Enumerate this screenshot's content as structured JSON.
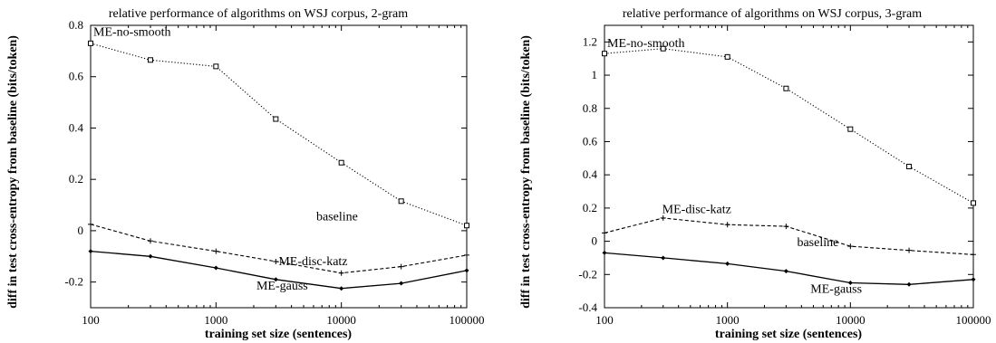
{
  "chart_data": [
    {
      "type": "line",
      "title": "relative performance of algorithms on WSJ corpus, 2-gram",
      "xlabel": "training set size (sentences)",
      "ylabel": "diff in test cross-entropy from baseline (bits/token)",
      "xscale": "log",
      "xlim": [
        100,
        100000
      ],
      "ylim": [
        -0.3,
        0.8
      ],
      "x_ticks": [
        100,
        1000,
        10000,
        100000
      ],
      "x_tick_labels": [
        "100",
        "1000",
        "10000",
        "100000"
      ],
      "y_ticks": [
        -0.2,
        0,
        0.2,
        0.4,
        0.6,
        0.8
      ],
      "y_tick_labels": [
        "-0.2",
        "0",
        "0.2",
        "0.4",
        "0.6",
        "0.8"
      ],
      "grid": false,
      "x": [
        100,
        300,
        1000,
        3000,
        10000,
        30000,
        100000
      ],
      "series": [
        {
          "name": "ME-no-smooth",
          "values": [
            0.73,
            0.665,
            0.64,
            0.435,
            0.265,
            0.115,
            0.02
          ],
          "style": "dotted",
          "marker": "square"
        },
        {
          "name": "ME-disc-katz",
          "values": [
            0.025,
            -0.04,
            -0.08,
            -0.12,
            -0.165,
            -0.14,
            -0.095
          ],
          "style": "dashed",
          "marker": "plus"
        },
        {
          "name": "ME-gauss",
          "values": [
            -0.08,
            -0.1,
            -0.145,
            -0.19,
            -0.225,
            -0.205,
            -0.155
          ],
          "style": "solid",
          "marker": "diamond"
        }
      ],
      "annotations": [
        {
          "text": "ME-no-smooth",
          "x": 100,
          "y": 0.76
        },
        {
          "text": "baseline",
          "x": 6000,
          "y": 0.04
        },
        {
          "text": "ME-disc-katz",
          "x": 3000,
          "y": -0.135
        },
        {
          "text": "ME-gauss",
          "x": 2000,
          "y": -0.23
        }
      ]
    },
    {
      "type": "line",
      "title": "relative performance of algorithms on WSJ corpus, 3-gram",
      "xlabel": "training set size (sentences)",
      "ylabel": "diff in test cross-entropy from baseline (bits/token)",
      "xscale": "log",
      "xlim": [
        100,
        100000
      ],
      "ylim": [
        -0.4,
        1.3
      ],
      "x_ticks": [
        100,
        1000,
        10000,
        100000
      ],
      "x_tick_labels": [
        "100",
        "1000",
        "10000",
        "100000"
      ],
      "y_ticks": [
        -0.4,
        -0.2,
        0,
        0.2,
        0.4,
        0.6,
        0.8,
        1,
        1.2
      ],
      "y_tick_labels": [
        "-0.4",
        "-0.2",
        "0",
        "0.2",
        "0.4",
        "0.6",
        "0.8",
        "1",
        "1.2"
      ],
      "grid": false,
      "x": [
        100,
        300,
        1000,
        3000,
        10000,
        30000,
        100000
      ],
      "series": [
        {
          "name": "ME-no-smooth",
          "values": [
            1.13,
            1.16,
            1.11,
            0.92,
            0.675,
            0.45,
            0.23
          ],
          "style": "dotted",
          "marker": "square"
        },
        {
          "name": "ME-disc-katz",
          "values": [
            0.05,
            0.14,
            0.1,
            0.09,
            -0.03,
            -0.055,
            -0.08
          ],
          "style": "dashed",
          "marker": "plus"
        },
        {
          "name": "ME-gauss",
          "values": [
            -0.07,
            -0.1,
            -0.135,
            -0.18,
            -0.25,
            -0.26,
            -0.23
          ],
          "style": "solid",
          "marker": "diamond"
        }
      ],
      "annotations": [
        {
          "text": "ME-no-smooth",
          "x": 100,
          "y": 1.17
        },
        {
          "text": "ME-disc-katz",
          "x": 280,
          "y": 0.17
        },
        {
          "text": "baseline",
          "x": 3500,
          "y": -0.03
        },
        {
          "text": "ME-gauss",
          "x": 4500,
          "y": -0.31
        }
      ]
    }
  ]
}
